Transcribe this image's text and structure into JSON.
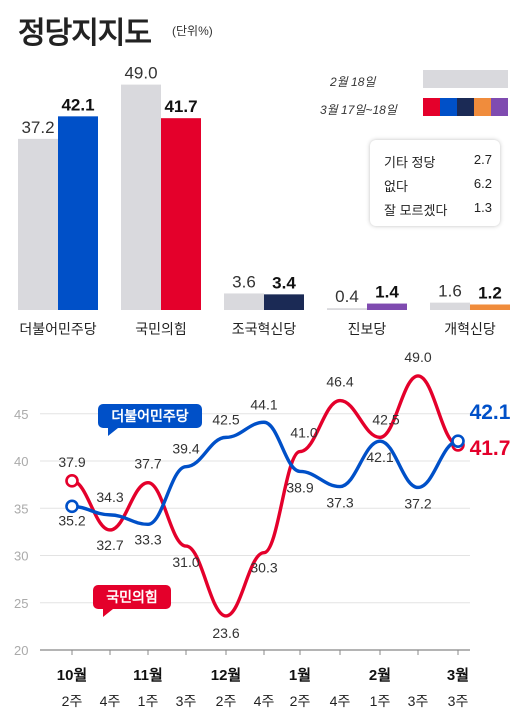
{
  "title": "정당지지도",
  "unit": "(단위%)",
  "legend": {
    "feb": "2월 18일",
    "mar": "3월 17일~18일",
    "feb_color": "#d9d9dd",
    "mar_colors": [
      "#e4002b",
      "#0050c8",
      "#1b2a55",
      "#f08c3c",
      "#7f4bb0"
    ]
  },
  "others": [
    {
      "label": "기타 정당",
      "value": "2.7"
    },
    {
      "label": "없다",
      "value": "6.2"
    },
    {
      "label": "잘 모르겠다",
      "value": "1.3"
    }
  ],
  "chart_data": [
    {
      "type": "bar",
      "categories": [
        "더불어민주당",
        "국민의힘",
        "조국혁신당",
        "진보당",
        "개혁신당"
      ],
      "series": [
        {
          "name": "2월 18일",
          "values": [
            37.2,
            49.0,
            3.6,
            0.4,
            1.6
          ],
          "labels": [
            "37.2",
            "49.0",
            "3.6",
            "0.4",
            "1.6"
          ],
          "color": "#d9d9dd"
        },
        {
          "name": "3월 17일~18일",
          "values": [
            42.1,
            41.7,
            3.4,
            1.4,
            1.2
          ],
          "labels": [
            "42.1",
            "41.7",
            "3.4",
            "1.4",
            "1.2"
          ],
          "colors": [
            "#0050c8",
            "#e4002b",
            "#1b2a55",
            "#7f4bb0",
            "#f08c3c"
          ]
        }
      ]
    },
    {
      "type": "line",
      "x_months": [
        "10월",
        "11월",
        "12월",
        "1월",
        "2월",
        "3월"
      ],
      "x_weeks": [
        "2주",
        "4주",
        "1주",
        "3주",
        "2주",
        "4주",
        "2주",
        "4주",
        "1주",
        "3주",
        "3주"
      ],
      "y_ticks": [
        "45",
        "40",
        "35",
        "30",
        "25",
        "20"
      ],
      "ylim": [
        20,
        45
      ],
      "series": [
        {
          "name": "더불어민주당",
          "color": "#0050c8",
          "values": [
            35.2,
            34.3,
            33.3,
            39.4,
            42.5,
            44.1,
            38.9,
            37.3,
            42.1,
            37.2,
            42.1
          ],
          "labels": [
            "35.2",
            "34.3",
            "33.3",
            "39.4",
            "42.5",
            "44.1",
            "38.9",
            "37.3",
            "42.1",
            "37.2",
            "42.1"
          ]
        },
        {
          "name": "국민의힘",
          "color": "#e4002b",
          "values": [
            37.9,
            32.7,
            37.7,
            31.0,
            23.6,
            30.3,
            41.0,
            46.4,
            42.5,
            49.0,
            41.7
          ],
          "labels": [
            "37.9",
            "32.7",
            "37.7",
            "31.0",
            "23.6",
            "30.3",
            "41.0",
            "46.4",
            "42.5",
            "49.0",
            "41.7"
          ]
        }
      ]
    }
  ]
}
